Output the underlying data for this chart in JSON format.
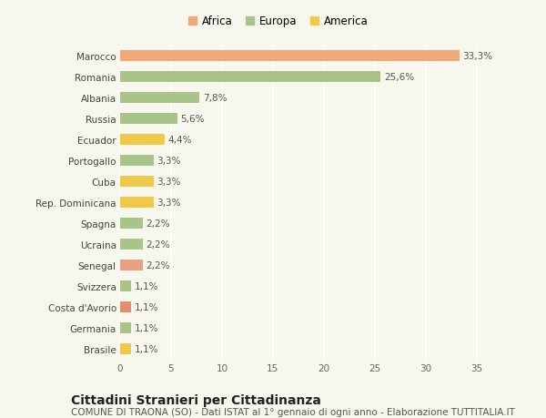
{
  "categories": [
    "Brasile",
    "Germania",
    "Costa d'Avorio",
    "Svizzera",
    "Senegal",
    "Ucraina",
    "Spagna",
    "Rep. Dominicana",
    "Cuba",
    "Portogallo",
    "Ecuador",
    "Russia",
    "Albania",
    "Romania",
    "Marocco"
  ],
  "values": [
    1.1,
    1.1,
    1.1,
    1.1,
    2.2,
    2.2,
    2.2,
    3.3,
    3.3,
    3.3,
    4.4,
    5.6,
    7.8,
    25.6,
    33.3
  ],
  "labels": [
    "1,1%",
    "1,1%",
    "1,1%",
    "1,1%",
    "2,2%",
    "2,2%",
    "2,2%",
    "3,3%",
    "3,3%",
    "3,3%",
    "4,4%",
    "5,6%",
    "7,8%",
    "25,6%",
    "33,3%"
  ],
  "colors": [
    "#f0c84a",
    "#a8c48a",
    "#e09070",
    "#a8c48a",
    "#e8a080",
    "#a8c48a",
    "#a8c48a",
    "#f0c84a",
    "#f0c84a",
    "#a8c48a",
    "#f0c84a",
    "#a8c48a",
    "#a8c48a",
    "#a8c48a",
    "#f0a878"
  ],
  "legend_labels": [
    "Africa",
    "Europa",
    "America"
  ],
  "legend_colors": [
    "#f0a878",
    "#a8c48a",
    "#f0c84a"
  ],
  "title": "Cittadini Stranieri per Cittadinanza",
  "subtitle": "COMUNE DI TRAONA (SO) - Dati ISTAT al 1° gennaio di ogni anno - Elaborazione TUTTITALIA.IT",
  "xlim": [
    0,
    37
  ],
  "xticks": [
    0,
    5,
    10,
    15,
    20,
    25,
    30,
    35
  ],
  "background_color": "#f7f7ee",
  "grid_color": "#ffffff",
  "bar_height": 0.55,
  "title_fontsize": 10,
  "subtitle_fontsize": 7.5,
  "label_fontsize": 7.5,
  "tick_fontsize": 7.5,
  "legend_fontsize": 8.5
}
